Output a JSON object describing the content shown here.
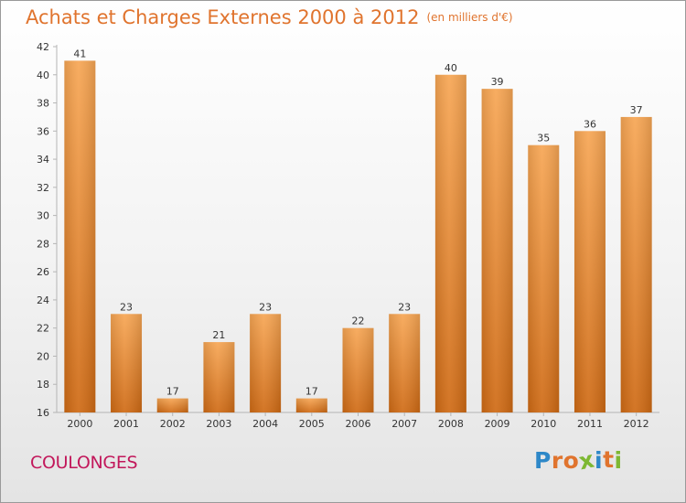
{
  "header": {
    "title": "Achats et Charges Externes 2000 à 2012",
    "unit": "(en milliers d'€)"
  },
  "footer": {
    "commune": "COULONGES",
    "brand": "Proxiti"
  },
  "colors": {
    "title": "#e0742e",
    "commune": "#c2185b",
    "bar_top": "#f7a654",
    "bar_bottom": "#cf6a14",
    "brand_letters": [
      "#2e88c8",
      "#e0742e",
      "#e0742e",
      "#7db832",
      "#2e88c8",
      "#e0742e",
      "#7db832"
    ]
  },
  "chart_data": {
    "type": "bar",
    "categories": [
      "2000",
      "2001",
      "2002",
      "2003",
      "2004",
      "2005",
      "2006",
      "2007",
      "2008",
      "2009",
      "2010",
      "2011",
      "2012"
    ],
    "values": [
      41,
      23,
      17,
      21,
      23,
      17,
      22,
      23,
      40,
      39,
      35,
      36,
      37
    ],
    "data_labels": [
      "41",
      "23",
      "17",
      "21",
      "23",
      "17",
      "22",
      "23",
      "40",
      "39",
      "35",
      "36",
      "37"
    ],
    "yticks": [
      "16",
      "18",
      "20",
      "22",
      "24",
      "26",
      "28",
      "30",
      "32",
      "34",
      "36",
      "38",
      "40",
      "42"
    ],
    "ylim": [
      16,
      42
    ],
    "grid": false
  }
}
